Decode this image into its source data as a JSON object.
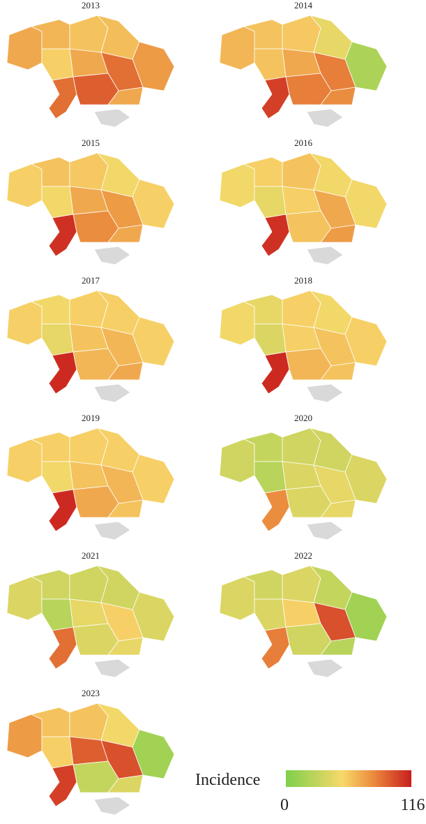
{
  "panels": [
    {
      "year": "2013",
      "values": [
        70,
        65,
        60,
        62,
        75,
        55,
        70,
        90,
        90,
        95,
        70
      ]
    },
    {
      "year": "2014",
      "values": [
        65,
        60,
        58,
        45,
        20,
        60,
        70,
        85,
        105,
        85,
        80
      ]
    },
    {
      "year": "2015",
      "values": [
        55,
        60,
        58,
        50,
        55,
        50,
        70,
        75,
        110,
        80,
        70
      ]
    },
    {
      "year": "2016",
      "values": [
        50,
        55,
        60,
        50,
        50,
        45,
        55,
        70,
        110,
        60,
        75
      ]
    },
    {
      "year": "2017",
      "values": [
        55,
        50,
        55,
        55,
        55,
        45,
        60,
        65,
        112,
        65,
        70
      ]
    },
    {
      "year": "2018",
      "values": [
        50,
        45,
        55,
        50,
        55,
        40,
        55,
        60,
        112,
        65,
        60
      ]
    },
    {
      "year": "2019",
      "values": [
        55,
        55,
        55,
        55,
        55,
        50,
        60,
        65,
        112,
        70,
        60
      ]
    },
    {
      "year": "2020",
      "values": [
        35,
        30,
        35,
        35,
        40,
        25,
        40,
        45,
        80,
        40,
        45
      ]
    },
    {
      "year": "2021",
      "values": [
        40,
        35,
        35,
        35,
        40,
        25,
        45,
        55,
        90,
        40,
        45
      ]
    },
    {
      "year": "2022",
      "values": [
        40,
        35,
        40,
        30,
        15,
        40,
        55,
        100,
        85,
        35,
        25
      ]
    },
    {
      "year": "2023",
      "values": [
        75,
        60,
        60,
        50,
        15,
        55,
        95,
        100,
        105,
        30,
        40
      ]
    }
  ],
  "legend": {
    "title": "Incidence",
    "min": 0,
    "max": 116
  }
}
